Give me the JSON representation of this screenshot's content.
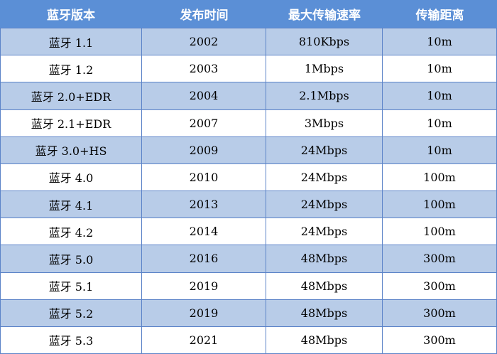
{
  "table": {
    "headers": [
      "蓝牙版本",
      "发布时间",
      "最大传输速率",
      "传输距离"
    ],
    "rows": [
      {
        "version": "蓝牙 1.1",
        "year": "2002",
        "rate": "810Kbps",
        "range": "10m"
      },
      {
        "version": "蓝牙 1.2",
        "year": "2003",
        "rate": "1Mbps",
        "range": "10m"
      },
      {
        "version": "蓝牙 2.0+EDR",
        "year": "2004",
        "rate": "2.1Mbps",
        "range": "10m"
      },
      {
        "version": "蓝牙 2.1+EDR",
        "year": "2007",
        "rate": "3Mbps",
        "range": "10m"
      },
      {
        "version": "蓝牙 3.0+HS",
        "year": "2009",
        "rate": "24Mbps",
        "range": "10m"
      },
      {
        "version": "蓝牙 4.0",
        "year": "2010",
        "rate": "24Mbps",
        "range": "100m"
      },
      {
        "version": "蓝牙 4.1",
        "year": "2013",
        "rate": "24Mbps",
        "range": "100m"
      },
      {
        "version": "蓝牙 4.2",
        "year": "2014",
        "rate": "24Mbps",
        "range": "100m"
      },
      {
        "version": "蓝牙 5.0",
        "year": "2016",
        "rate": "48Mbps",
        "range": "300m"
      },
      {
        "version": "蓝牙 5.1",
        "year": "2019",
        "rate": "48Mbps",
        "range": "300m"
      },
      {
        "version": "蓝牙 5.2",
        "year": "2019",
        "rate": "48Mbps",
        "range": "300m"
      },
      {
        "version": "蓝牙 5.3",
        "year": "2021",
        "rate": "48Mbps",
        "range": "300m"
      }
    ]
  },
  "colors": {
    "header_bg": "#5b8fd6",
    "shaded_row_bg": "#b8cce8",
    "border": "#5b83c8"
  }
}
